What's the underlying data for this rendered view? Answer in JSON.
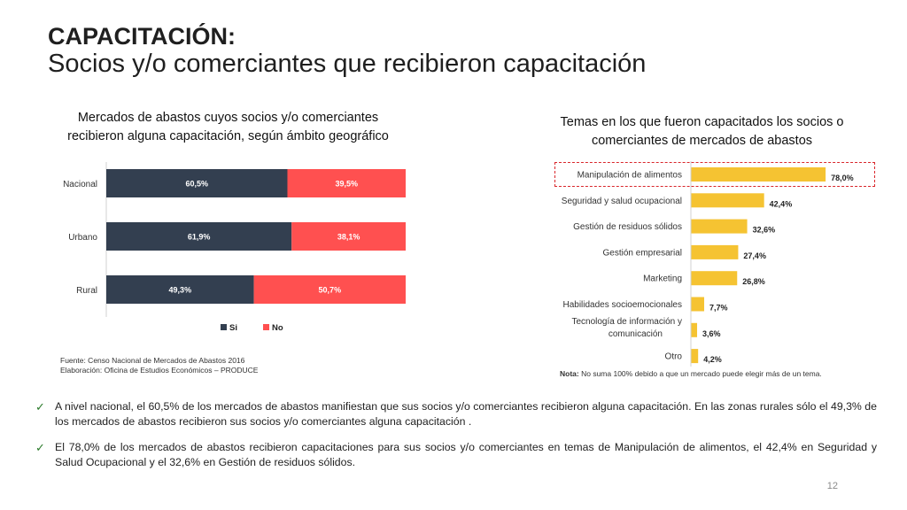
{
  "header": {
    "title": "CAPACITACIÓN:",
    "subtitle": "Socios y/o comerciantes que recibieron capacitación"
  },
  "chart_data": [
    {
      "type": "bar",
      "orientation": "horizontal",
      "stacked": true,
      "title": "Mercados de abastos cuyos socios y/o comerciantes recibieron alguna capacitación, según ámbito geográfico",
      "categories": [
        "Nacional",
        "Urbano",
        "Rural"
      ],
      "series": [
        {
          "name": "Si",
          "values": [
            60.5,
            61.9,
            49.3
          ],
          "labels": [
            "60,5%",
            "61,9%",
            "49,3%"
          ],
          "color": "#333f50"
        },
        {
          "name": "No",
          "values": [
            39.5,
            38.1,
            50.7
          ],
          "labels": [
            "39,5%",
            "38,1%",
            "50,7%"
          ],
          "color": "#ff5050"
        }
      ],
      "xlim": [
        0,
        100
      ],
      "legend": "bottom",
      "grid": false
    },
    {
      "type": "bar",
      "orientation": "horizontal",
      "title": "Temas en los que fueron capacitados los socios o comerciantes de mercados de abastos",
      "categories": [
        "Manipulación de alimentos",
        "Seguridad y salud ocupacional",
        "Gestión de residuos sólidos",
        "Gestión empresarial",
        "Marketing",
        "Habilidades socioemocionales",
        "Tecnología de información y comunicación",
        "Otro"
      ],
      "category_lines": [
        [
          "Manipulación de alimentos"
        ],
        [
          "Seguridad y salud ocupacional"
        ],
        [
          "Gestión de residuos sólidos"
        ],
        [
          "Gestión empresarial"
        ],
        [
          "Marketing"
        ],
        [
          "Habilidades socioemocionales"
        ],
        [
          "Tecnología de información y",
          "comunicación"
        ],
        [
          "Otro"
        ]
      ],
      "values": [
        78.0,
        42.4,
        32.6,
        27.4,
        26.8,
        7.7,
        3.6,
        4.2
      ],
      "labels": [
        "78,0%",
        "42,4%",
        "32,6%",
        "27,4%",
        "26,8%",
        "7,7%",
        "3,6%",
        "4,2%"
      ],
      "color": "#f5c332",
      "xlim": [
        0,
        100
      ],
      "highlighted_category": "Manipulación de alimentos",
      "highlight_color": "#d9262b",
      "grid": false
    }
  ],
  "source": {
    "line1": "Fuente: Censo Nacional de Mercados de Abastos 2016",
    "line2": "Elaboración: Oficina de Estudios Económicos – PRODUCE"
  },
  "note": {
    "label": "Nota:",
    "text": " No suma 100% debido a que un mercado puede elegir más de un tema."
  },
  "bullets": [
    "A nivel nacional, el 60,5% de los mercados de abastos manifiestan que sus socios y/o comerciantes recibieron alguna capacitación. En las zonas rurales sólo el 49,3% de los mercados de abastos recibieron sus socios y/o comerciantes alguna capacitación .",
    "El 78,0% de los mercados de abastos recibieron capacitaciones para sus socios y/o comerciantes en temas de Manipulación de alimentos, el 42,4% en Seguridad y Salud Ocupacional y el 32,6% en Gestión de residuos sólidos."
  ],
  "check_icon": "✓",
  "page_number": "12"
}
